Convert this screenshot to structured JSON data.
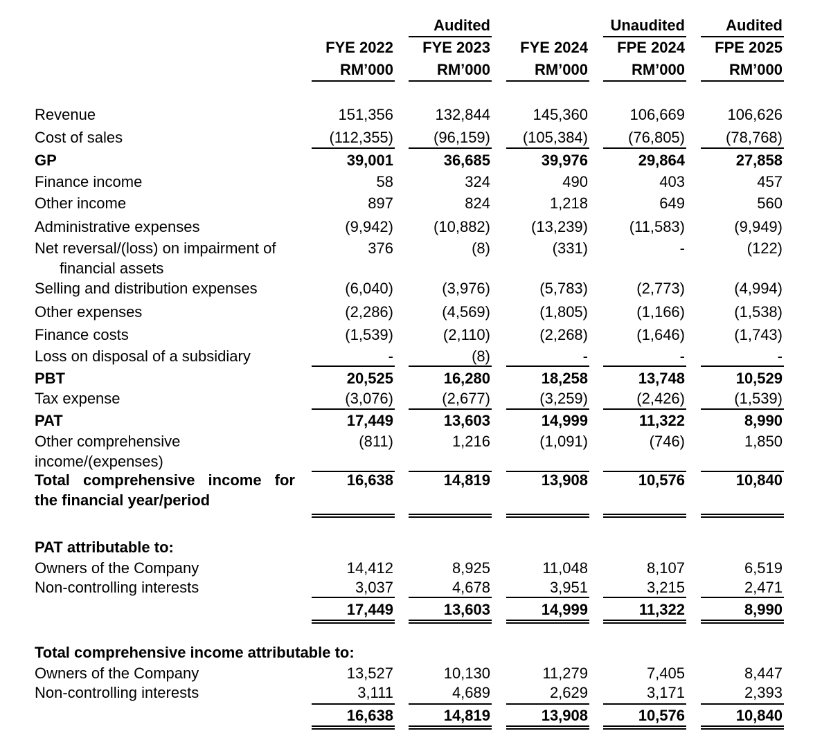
{
  "columns": [
    {
      "period": "FYE 2022",
      "unit": "RM’000"
    },
    {
      "status": "Audited",
      "period": "FYE 2023",
      "unit": "RM’000"
    },
    {
      "period": "FYE 2024",
      "unit": "RM’000"
    },
    {
      "status": "Unaudited",
      "period": "FPE 2024",
      "unit": "RM’000"
    },
    {
      "status": "Audited",
      "period": "FPE 2025",
      "unit": "RM’000"
    }
  ],
  "sections": [
    {
      "rows": [
        {
          "label": "Revenue",
          "values": [
            "151,356",
            "132,844",
            "145,360",
            "106,669",
            "106,626"
          ]
        },
        {
          "label": "Cost of sales",
          "values": [
            "(112,355)",
            "(96,159)",
            "(105,384)",
            "(76,805)",
            "(78,768)"
          ]
        },
        {
          "label": "GP",
          "values": [
            "39,001",
            "36,685",
            "39,976",
            "29,864",
            "27,858"
          ]
        },
        {
          "label": "Finance income",
          "values": [
            "58",
            "324",
            "490",
            "403",
            "457"
          ]
        },
        {
          "label": "Other income",
          "values": [
            "897",
            "824",
            "1,218",
            "649",
            "560"
          ]
        },
        {
          "label": "Administrative expenses",
          "values": [
            "(9,942)",
            "(10,882)",
            "(13,239)",
            "(11,583)",
            "(9,949)"
          ]
        },
        {
          "label": "Net reversal/(loss) on impairment of financial assets",
          "values": [
            "376",
            "(8)",
            "(331)",
            "-",
            "(122)"
          ]
        },
        {
          "label": "Selling and distribution expenses",
          "values": [
            "(6,040)",
            "(3,976)",
            "(5,783)",
            "(2,773)",
            "(4,994)"
          ]
        },
        {
          "label": "Other expenses",
          "values": [
            "(2,286)",
            "(4,569)",
            "(1,805)",
            "(1,166)",
            "(1,538)"
          ]
        },
        {
          "label": "Finance costs",
          "values": [
            "(1,539)",
            "(2,110)",
            "(2,268)",
            "(1,646)",
            "(1,743)"
          ]
        },
        {
          "label": "Loss on disposal of a subsidiary",
          "values": [
            "-",
            "(8)",
            "-",
            "-",
            "-"
          ]
        },
        {
          "label": "PBT",
          "values": [
            "20,525",
            "16,280",
            "18,258",
            "13,748",
            "10,529"
          ]
        },
        {
          "label": "Tax expense",
          "values": [
            "(3,076)",
            "(2,677)",
            "(3,259)",
            "(2,426)",
            "(1,539)"
          ]
        },
        {
          "label": "PAT",
          "values": [
            "17,449",
            "13,603",
            "14,999",
            "11,322",
            "8,990"
          ]
        },
        {
          "label": "Other comprehensive income/(expenses)",
          "values": [
            "(811)",
            "1,216",
            "(1,091)",
            "(746)",
            "1,850"
          ]
        },
        {
          "label": "Total comprehensive income for the financial year/period",
          "values": [
            "16,638",
            "14,819",
            "13,908",
            "10,576",
            "10,840"
          ]
        }
      ]
    },
    {
      "title": "PAT attributable to:",
      "rows": [
        {
          "label": "Owners of the Company",
          "values": [
            "14,412",
            "8,925",
            "11,048",
            "8,107",
            "6,519"
          ]
        },
        {
          "label": "Non-controlling interests",
          "values": [
            "3,037",
            "4,678",
            "3,951",
            "3,215",
            "2,471"
          ]
        },
        {
          "values": [
            "17,449",
            "13,603",
            "14,999",
            "11,322",
            "8,990"
          ]
        }
      ]
    },
    {
      "title": "Total comprehensive income attributable to:",
      "rows": [
        {
          "label": "Owners of the Company",
          "values": [
            "13,527",
            "10,130",
            "11,279",
            "7,405",
            "8,447"
          ]
        },
        {
          "label": "Non-controlling interests",
          "values": [
            "3,111",
            "4,689",
            "2,629",
            "3,171",
            "2,393"
          ]
        },
        {
          "values": [
            "16,638",
            "14,819",
            "13,908",
            "10,576",
            "10,840"
          ]
        }
      ]
    }
  ]
}
